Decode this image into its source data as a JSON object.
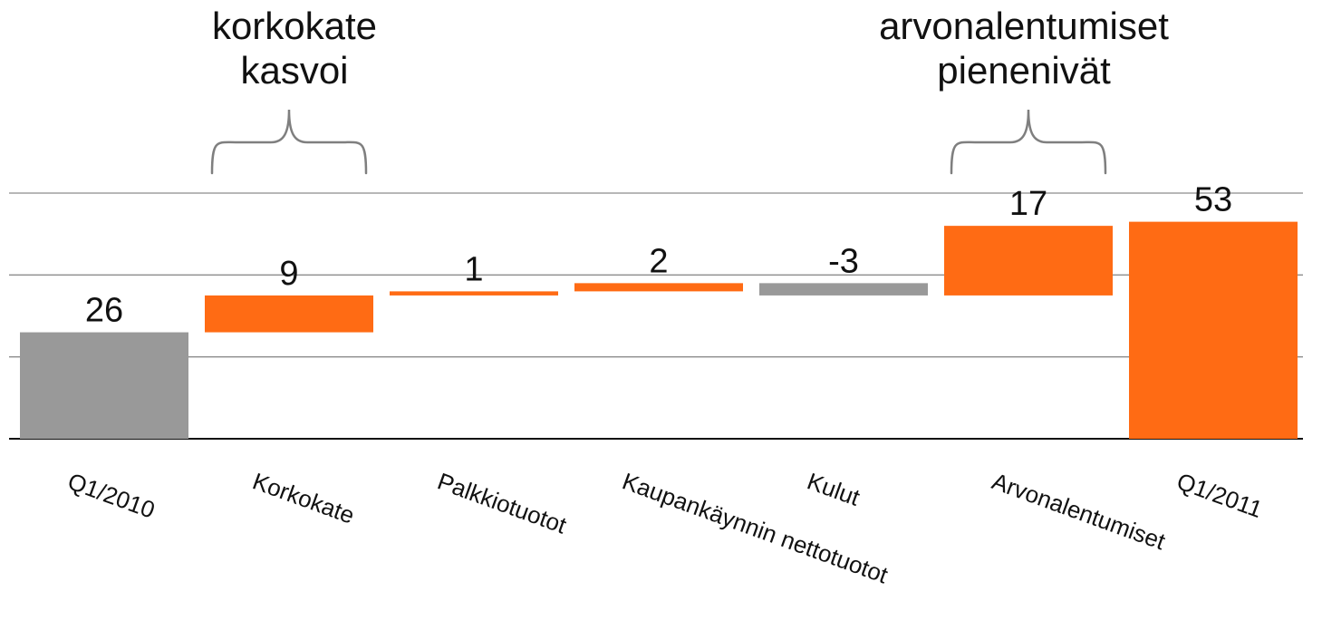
{
  "chart_data": {
    "type": "bar",
    "subtype": "waterfall",
    "title": "",
    "xlabel": "",
    "ylabel": "",
    "ylim": [
      0,
      60
    ],
    "grid": true,
    "categories": [
      "Q1/2010",
      "Korkokate",
      "Palkkiotuotot",
      "Kaupankäynnin nettotuotot",
      "Kulut",
      "Arvonalentumiset",
      "Q1/2011"
    ],
    "values": [
      26,
      9,
      1,
      2,
      -3,
      17,
      53
    ],
    "data_labels": [
      "26",
      "9",
      "1",
      "2",
      "-3",
      "17",
      "53"
    ],
    "bar_kinds": [
      "total",
      "delta",
      "delta",
      "delta",
      "delta",
      "delta",
      "total"
    ],
    "colors": {
      "increase": "#ff6b14",
      "decrease": "#999999",
      "start_total": "#999999",
      "end_total": "#ff6b14",
      "gridline": "#8c8c8c",
      "baseline": "#111111",
      "brace": "#7f7f7f"
    },
    "annotations": [
      {
        "id": "korkokate",
        "lines": [
          "korkokate",
          "kasvoi"
        ],
        "bracket_over": "Korkokate"
      },
      {
        "id": "arvonalentumiset",
        "lines": [
          "arvonalentumiset",
          "pienenivät"
        ],
        "bracket_over": "Arvonalentumiset"
      }
    ]
  }
}
